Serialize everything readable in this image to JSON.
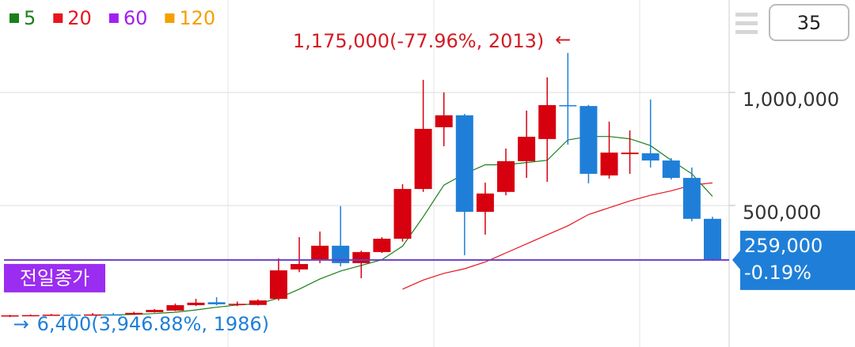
{
  "chart_data": {
    "type": "candlestick",
    "open": [
      12000,
      14000,
      15000,
      17000,
      16000,
      18000,
      18000,
      28000,
      35000,
      59000,
      72000,
      60000,
      60000,
      87000,
      217000,
      262000,
      322000,
      245000,
      294000,
      353000,
      573000,
      846000,
      899000,
      472000,
      560000,
      696000,
      794000,
      944000,
      940000,
      633000,
      727000,
      731000,
      699000,
      622000,
      441000
    ],
    "high": [
      16000,
      18000,
      20000,
      22000,
      24000,
      25000,
      30000,
      42000,
      66000,
      87000,
      94000,
      75000,
      85000,
      266000,
      360000,
      385000,
      497000,
      300000,
      360000,
      594000,
      1056000,
      1000000,
      905000,
      601000,
      752000,
      920000,
      1067000,
      1175000,
      945000,
      871000,
      832000,
      969000,
      710000,
      668000,
      450000
    ],
    "low": [
      6400,
      12000,
      13000,
      14000,
      14000,
      15000,
      16000,
      26000,
      33000,
      55000,
      58000,
      55000,
      58000,
      80000,
      205000,
      245000,
      231000,
      178000,
      290000,
      340000,
      560000,
      762000,
      280000,
      371000,
      545000,
      622000,
      605000,
      769000,
      598000,
      619000,
      640000,
      668000,
      615000,
      430000,
      255000
    ],
    "close": [
      14000,
      15000,
      17000,
      16000,
      18000,
      17000,
      25000,
      38000,
      59000,
      70000,
      63000,
      65000,
      80000,
      213000,
      241000,
      322000,
      245000,
      294000,
      353000,
      573000,
      839000,
      899000,
      472000,
      553000,
      696000,
      804000,
      944000,
      940000,
      640000,
      734000,
      734000,
      699000,
      622000,
      441000,
      259000
    ],
    "up_color": "#d7000f",
    "down_color": "#1f7fd8",
    "series": [
      {
        "name": "5",
        "color": "#1a7f1a",
        "values": [
          null,
          null,
          null,
          null,
          15000,
          16000,
          18000,
          22000,
          28000,
          38000,
          50000,
          60000,
          65000,
          90000,
          130000,
          175000,
          210000,
          235000,
          260000,
          320000,
          450000,
          590000,
          640000,
          680000,
          680000,
          690000,
          700000,
          790000,
          805000,
          805000,
          795000,
          765000,
          700000,
          640000,
          540000
        ]
      },
      {
        "name": "20",
        "color": "#e8141e",
        "values": [
          null,
          null,
          null,
          null,
          null,
          null,
          null,
          null,
          null,
          null,
          null,
          null,
          null,
          null,
          null,
          null,
          null,
          null,
          null,
          130000,
          170000,
          200000,
          220000,
          250000,
          290000,
          330000,
          370000,
          410000,
          460000,
          490000,
          520000,
          545000,
          565000,
          590000,
          600000
        ]
      },
      {
        "name": "60",
        "color": "#a21ff0"
      },
      {
        "name": "120",
        "color": "#f5a000"
      }
    ],
    "ylim": [
      -126000,
      1409000
    ],
    "yticks": [
      {
        "value": 500000,
        "label": "500,000"
      },
      {
        "value": 1000000,
        "label": "1,000,000"
      }
    ],
    "grid": true,
    "high_annotation": "1,175,000(-77.96%, 2013)",
    "low_annotation": "6,400(3,946.88%, 1986)",
    "prev_close": {
      "value": 259000,
      "label": "전일종가",
      "color": "#6a3fc4"
    },
    "last_price": {
      "value": 259000,
      "label": "259,000",
      "change": "-0.19%"
    },
    "period_input": 35
  }
}
